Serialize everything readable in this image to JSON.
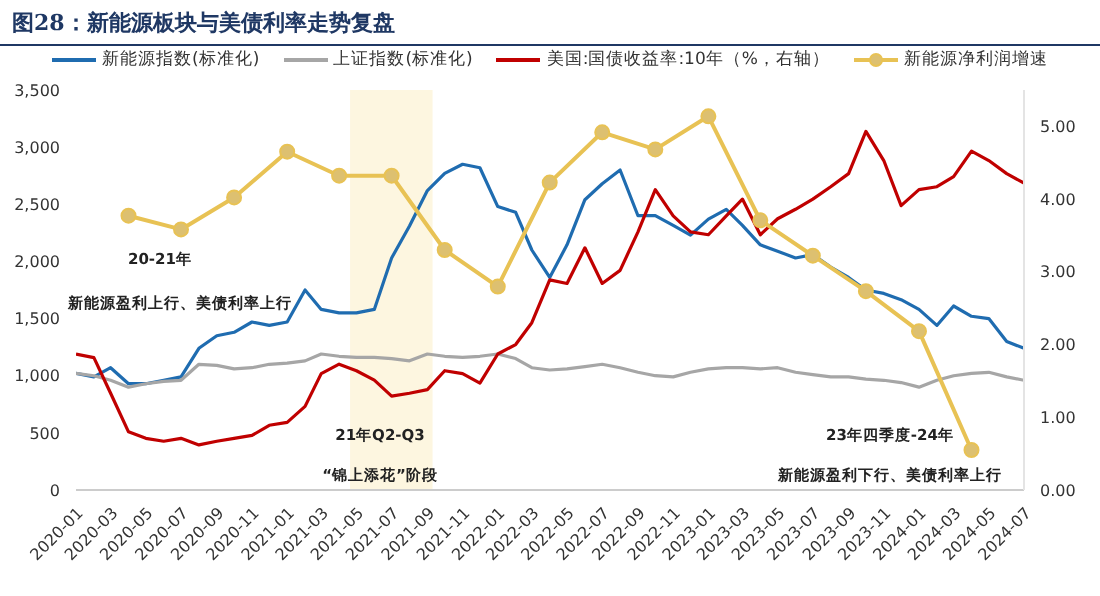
{
  "chart_data": {
    "type": "line",
    "title": "图28：新能源板块与美债利率走势复盘",
    "legend": "top",
    "marker": "none",
    "x": [
      "2020-01",
      "2020-02",
      "2020-03",
      "2020-04",
      "2020-05",
      "2020-06",
      "2020-07",
      "2020-08",
      "2020-09",
      "2020-10",
      "2020-11",
      "2020-12",
      "2021-01",
      "2021-02",
      "2021-03",
      "2021-04",
      "2021-05",
      "2021-06",
      "2021-07",
      "2021-08",
      "2021-09",
      "2021-10",
      "2021-11",
      "2021-12",
      "2022-01",
      "2022-02",
      "2022-03",
      "2022-04",
      "2022-05",
      "2022-06",
      "2022-07",
      "2022-08",
      "2022-09",
      "2022-10",
      "2022-11",
      "2022-12",
      "2023-01",
      "2023-02",
      "2023-03",
      "2023-04",
      "2023-05",
      "2023-06",
      "2023-07",
      "2023-08",
      "2023-09",
      "2023-10",
      "2023-11",
      "2023-12",
      "2024-01",
      "2024-02",
      "2024-03",
      "2024-04",
      "2024-05",
      "2024-06",
      "2024-07"
    ],
    "series": [
      {
        "name": "新能源指数(标准化)",
        "color": "#1f6cb0",
        "values": [
          1020,
          990,
          1070,
          930,
          930,
          960,
          990,
          1240,
          1350,
          1380,
          1470,
          1440,
          1470,
          1750,
          1580,
          1550,
          1550,
          1580,
          2030,
          2310,
          2620,
          2770,
          2850,
          2820,
          2480,
          2430,
          2100,
          1860,
          2145,
          2540,
          2680,
          2800,
          2400,
          2400,
          2315,
          2230,
          2370,
          2455,
          2315,
          2145,
          2090,
          2030,
          2060,
          1950,
          1860,
          1750,
          1720,
          1665,
          1580,
          1440,
          1610,
          1520,
          1500,
          1300,
          1240
        ]
      },
      {
        "name": "上证指数(标准化)",
        "color": "#a6a6a6",
        "values": [
          1020,
          1000,
          960,
          900,
          930,
          950,
          960,
          1100,
          1090,
          1060,
          1070,
          1100,
          1110,
          1130,
          1190,
          1170,
          1160,
          1160,
          1150,
          1130,
          1190,
          1170,
          1160,
          1170,
          1190,
          1150,
          1070,
          1050,
          1060,
          1080,
          1100,
          1070,
          1030,
          1000,
          990,
          1030,
          1060,
          1070,
          1070,
          1060,
          1070,
          1030,
          1010,
          990,
          990,
          970,
          960,
          940,
          900,
          960,
          1000,
          1020,
          1030,
          990,
          960
        ]
      },
      {
        "name": "美国:国债收益率:10年（%，右轴）",
        "color": "#c00000",
        "axis": "y2",
        "values": [
          1.87,
          1.82,
          1.33,
          0.8,
          0.71,
          0.67,
          0.71,
          0.62,
          0.67,
          0.71,
          0.75,
          0.89,
          0.93,
          1.15,
          1.6,
          1.73,
          1.64,
          1.51,
          1.29,
          1.33,
          1.38,
          1.64,
          1.6,
          1.47,
          1.87,
          2.0,
          2.3,
          2.89,
          2.84,
          3.33,
          2.84,
          3.02,
          3.55,
          4.13,
          3.77,
          3.55,
          3.51,
          3.77,
          4.0,
          3.51,
          3.73,
          3.86,
          4.0,
          4.17,
          4.35,
          4.93,
          4.53,
          3.91,
          4.13,
          4.17,
          4.31,
          4.66,
          4.53,
          4.35,
          4.22
        ]
      },
      {
        "name": "新能源净利润增速",
        "color": "#e8c254",
        "marker": "circle",
        "x": [
          "2020-04",
          "2020-07",
          "2020-10",
          "2021-01",
          "2021-04",
          "2021-07",
          "2021-10",
          "2022-01",
          "2022-04",
          "2022-07",
          "2022-10",
          "2023-01",
          "2023-04",
          "2023-07",
          "2023-10",
          "2024-01",
          "2024-04"
        ],
        "values": [
          2400,
          2280,
          2560,
          2960,
          2750,
          2750,
          2100,
          1780,
          2690,
          3130,
          2980,
          3270,
          2360,
          2050,
          1740,
          1390,
          350
        ]
      }
    ],
    "xlim": [
      "2020-01",
      "2024-07"
    ],
    "xticks": [
      "2020-01",
      "2020-03",
      "2020-05",
      "2020-07",
      "2020-09",
      "2020-11",
      "2021-01",
      "2021-03",
      "2021-05",
      "2021-07",
      "2021-09",
      "2021-11",
      "2022-01",
      "2022-03",
      "2022-05",
      "2022-07",
      "2022-09",
      "2022-11",
      "2023-01",
      "2023-03",
      "2023-05",
      "2023-07",
      "2023-09",
      "2023-11",
      "2024-01",
      "2024-03",
      "2024-05",
      "2024-07"
    ],
    "ylim": [
      0,
      3500
    ],
    "yticks": [
      0,
      {
        "value": 500,
        "label": "500"
      },
      {
        "value": 1000,
        "label": "1,000"
      },
      {
        "value": 1500,
        "label": "1,500"
      },
      {
        "value": 2000,
        "label": "2,000"
      },
      {
        "value": 2500,
        "label": "2,500"
      },
      {
        "value": 3000,
        "label": "3,000"
      },
      {
        "value": 3500,
        "label": "3,500"
      }
    ],
    "y2lim": [
      0,
      5.5
    ],
    "y2ticks": [
      {
        "value": 0,
        "label": "0.00"
      },
      {
        "value": 1,
        "label": "1.00"
      },
      {
        "value": 2,
        "label": "2.00"
      },
      {
        "value": 3,
        "label": "3.00"
      },
      {
        "value": 4,
        "label": "4.00"
      },
      {
        "value": 5,
        "label": "5.00"
      }
    ],
    "bands": [
      {
        "axis": "x",
        "from": "2021-04-20",
        "to": "2021-09-10",
        "color": "#fdf6e0"
      }
    ],
    "annotations": [
      "20-21年",
      "新能源盈利上行、美债利率上行",
      "21年Q2-Q3",
      "“锦上添花”阶段",
      "23年四季度-24年",
      "新能源盈利下行、美债利率上行"
    ]
  }
}
